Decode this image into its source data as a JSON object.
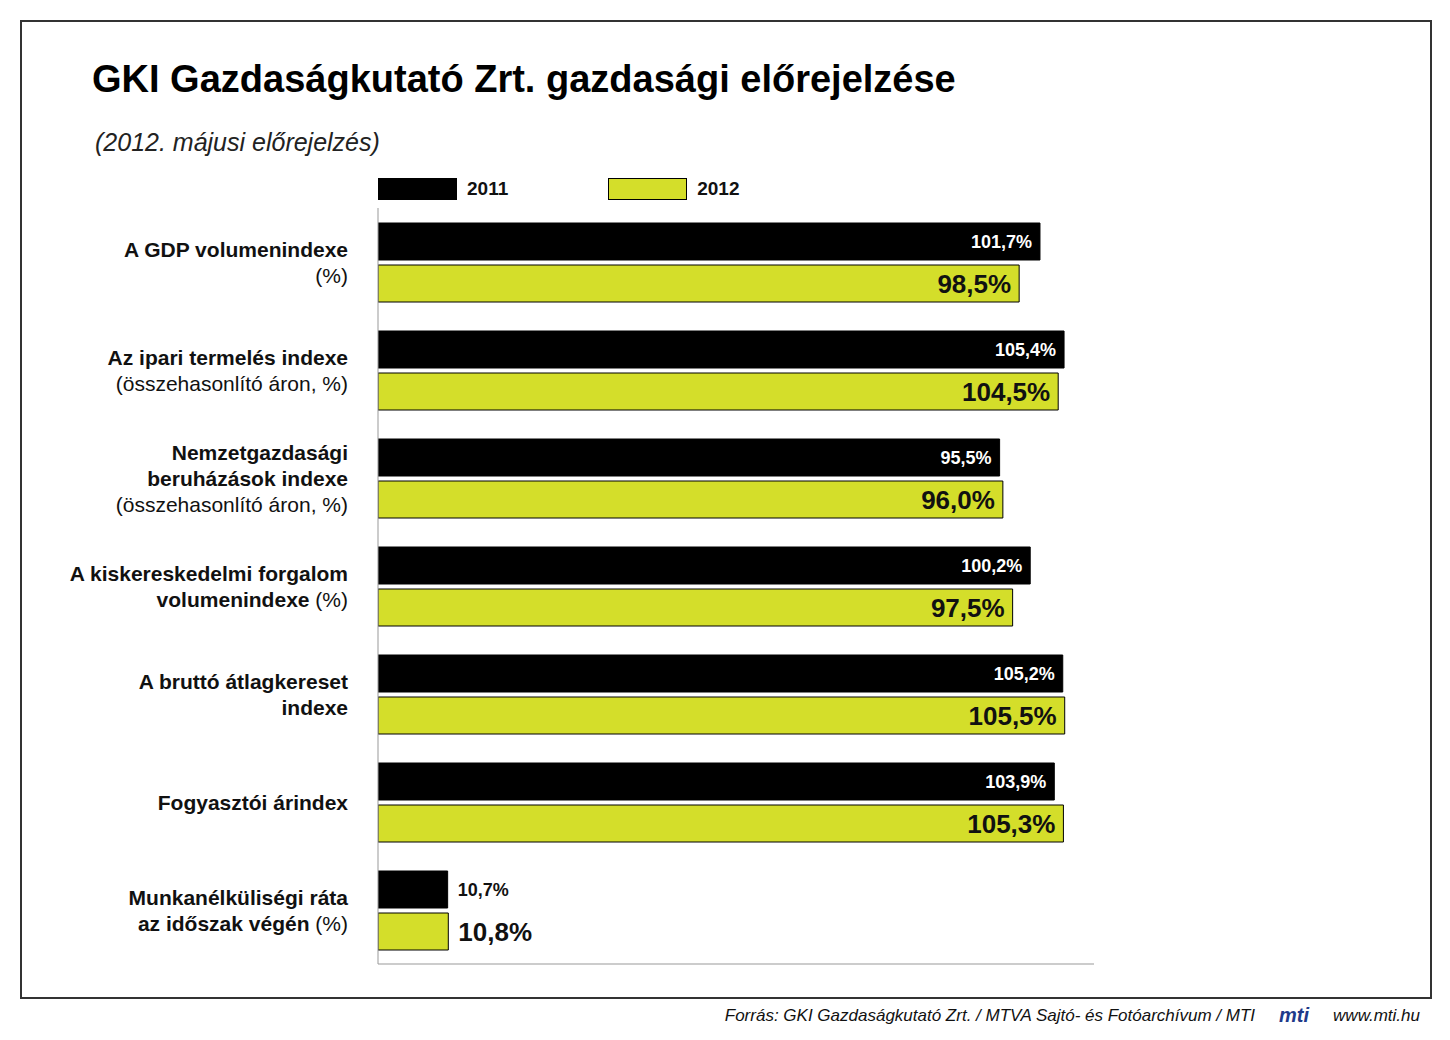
{
  "chart_data": {
    "type": "bar",
    "title": "GKI Gazdaságkutató Zrt. gazdasági előrejelzése",
    "subtitle": "(2012. májusi előrejelzés)",
    "orientation": "horizontal",
    "categories": [
      "A GDP volumenindexe\n(%)",
      "Az ipari termelés indexe\n(összehasonlító áron, %)",
      "Nemzetgazdasági\nberuházások indexe\n(összehasonlító áron, %)",
      "A kiskereskedelmi forgalom\nvolumenindexe (%)",
      "A bruttó átlagkereset\nindexe",
      "Fogyasztói árindex",
      "Munkanélküliségi ráta\naz időszak végén (%)"
    ],
    "series": [
      {
        "name": "2011",
        "color": "#000000",
        "values": [
          101.7,
          105.4,
          95.5,
          100.2,
          105.2,
          103.9,
          10.7
        ],
        "value_labels": [
          "101,7%",
          "105,4%",
          "95,5%",
          "100,2%",
          "105,2%",
          "103,9%",
          "10,7%"
        ]
      },
      {
        "name": "2012",
        "color": "#d4de2a",
        "values": [
          98.5,
          104.5,
          96.0,
          97.5,
          105.5,
          105.3,
          10.8
        ],
        "value_labels": [
          "98,5%",
          "104,5%",
          "96,0%",
          "97,5%",
          "105,5%",
          "105,3%",
          "10,8%"
        ]
      }
    ],
    "xlim": [
      0,
      110
    ],
    "xticks": [],
    "tick_labels": false,
    "grid": false,
    "data_labels": true,
    "legend": "top",
    "source": "Forrás: GKI Gazdaságkutató Zrt. / MTVA Sajtó- és Fotóarchívum / MTI",
    "logo": "mti",
    "website": "www.mti.hu"
  }
}
